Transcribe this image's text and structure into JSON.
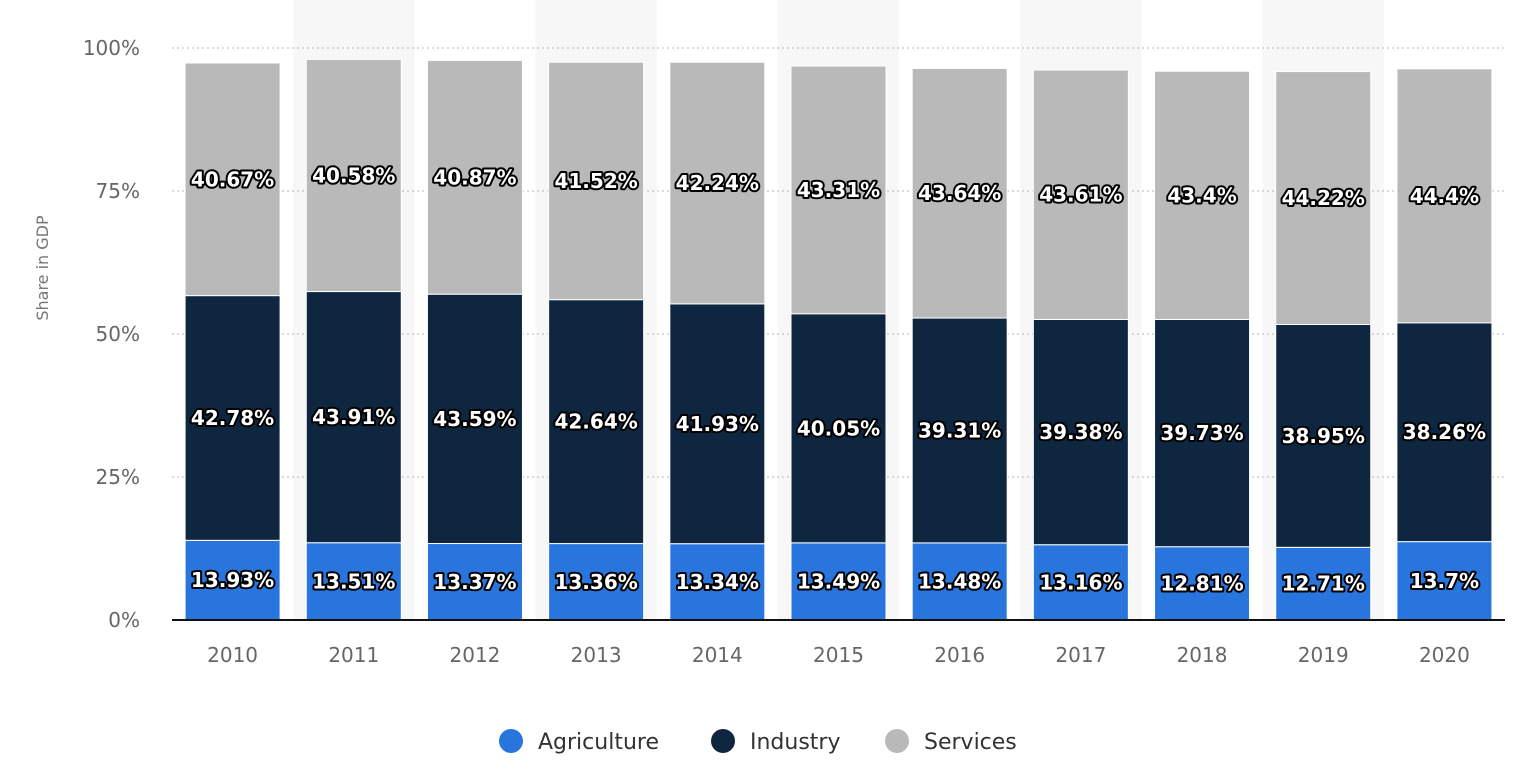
{
  "chart_data": {
    "type": "bar",
    "stacked": true,
    "categories": [
      "2010",
      "2011",
      "2012",
      "2013",
      "2014",
      "2015",
      "2016",
      "2017",
      "2018",
      "2019",
      "2020"
    ],
    "series": [
      {
        "name": "Agriculture",
        "color": "#2876dd",
        "values": [
          13.93,
          13.51,
          13.37,
          13.36,
          13.34,
          13.49,
          13.48,
          13.16,
          12.81,
          12.71,
          13.7
        ]
      },
      {
        "name": "Industry",
        "color": "#0f2640",
        "values": [
          42.78,
          43.91,
          43.59,
          42.64,
          41.93,
          40.05,
          39.31,
          39.38,
          39.73,
          38.95,
          38.26
        ]
      },
      {
        "name": "Services",
        "color": "#b9b9b9",
        "values": [
          40.67,
          40.58,
          40.87,
          41.52,
          42.24,
          43.31,
          43.64,
          43.61,
          43.4,
          44.22,
          44.4
        ]
      }
    ],
    "value_labels": [
      [
        "13.93%",
        "13.51%",
        "13.37%",
        "13.36%",
        "13.34%",
        "13.49%",
        "13.48%",
        "13.16%",
        "12.81%",
        "12.71%",
        "13.7%"
      ],
      [
        "42.78%",
        "43.91%",
        "43.59%",
        "42.64%",
        "41.93%",
        "40.05%",
        "39.31%",
        "39.38%",
        "39.73%",
        "38.95%",
        "38.26%"
      ],
      [
        "40.67%",
        "40.58%",
        "40.87%",
        "41.52%",
        "42.24%",
        "43.31%",
        "43.64%",
        "43.61%",
        "43.4%",
        "44.22%",
        "44.4%"
      ]
    ],
    "yticks": [
      0,
      25,
      50,
      75,
      100
    ],
    "ytick_labels": [
      "0%",
      "25%",
      "50%",
      "75%",
      "100%"
    ],
    "ylim": [
      0,
      100
    ],
    "ylabel": "Share in GDP",
    "xlabel": "",
    "title": "",
    "grid": true,
    "legend_position": "bottom-center"
  }
}
